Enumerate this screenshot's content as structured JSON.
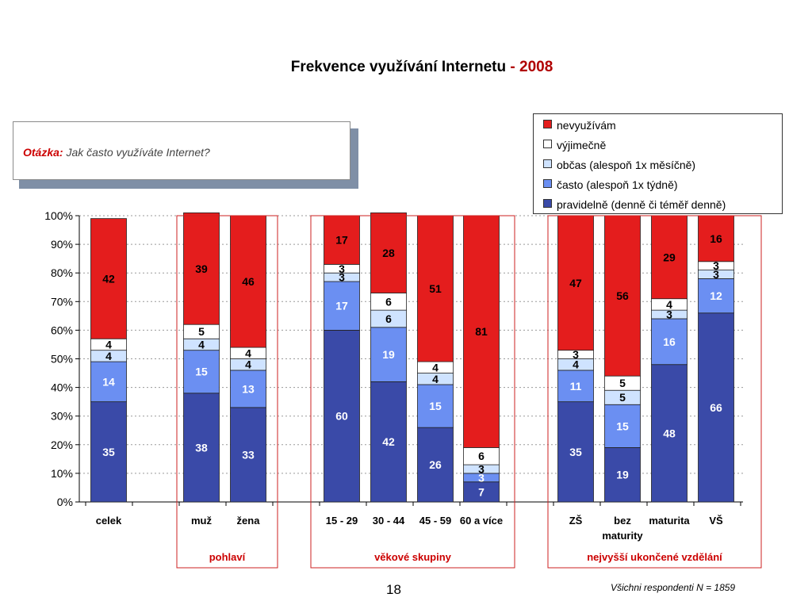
{
  "title": {
    "main": "Frekvence využívání Internetu",
    "dash": "-",
    "year": "2008"
  },
  "question": {
    "label": "Otázka:",
    "text": "Jak často využíváte Internet?"
  },
  "footer": {
    "page_number": "18",
    "note": "Všichni respondenti N = 1859"
  },
  "colors": {
    "pravidelne": "#3a4aa8",
    "casto": "#6b8ff2",
    "obcas": "#cfe3ff",
    "vyjimecne": "#ffffff",
    "nevyuzivam": "#e41d1d",
    "group_label": "#cc0000",
    "group_box": "#cc2222"
  },
  "chart_data": {
    "type": "bar",
    "stacked": true,
    "percent": true,
    "title": "Frekvence využívání Internetu - 2008",
    "ylim": [
      0,
      100
    ],
    "yticks": [
      "0%",
      "10%",
      "20%",
      "30%",
      "40%",
      "50%",
      "60%",
      "70%",
      "80%",
      "90%",
      "100%"
    ],
    "grid": true,
    "legend_position": "top-right",
    "categories": [
      "celek",
      "muž",
      "žena",
      "15 - 29",
      "30 - 44",
      "45 - 59",
      "60 a více",
      "ZŠ",
      "bez maturity",
      "maturita",
      "VŠ"
    ],
    "category_lines": [
      [
        "celek"
      ],
      [
        "muž"
      ],
      [
        "žena"
      ],
      [
        "15 - 29"
      ],
      [
        "30 - 44"
      ],
      [
        "45 - 59"
      ],
      [
        "60 a více"
      ],
      [
        "ZŠ"
      ],
      [
        "bez",
        "maturity"
      ],
      [
        "maturita"
      ],
      [
        "VŠ"
      ]
    ],
    "series": [
      {
        "key": "pravidelne",
        "name": "pravidelně (denně či téměř denně)",
        "values": [
          35,
          38,
          33,
          60,
          42,
          26,
          7,
          35,
          19,
          48,
          66
        ]
      },
      {
        "key": "casto",
        "name": "často (alespoň 1x týdně)",
        "values": [
          14,
          15,
          13,
          17,
          19,
          15,
          3,
          11,
          15,
          16,
          12
        ]
      },
      {
        "key": "obcas",
        "name": "občas (alespoň 1x měsíčně)",
        "values": [
          4,
          4,
          4,
          3,
          6,
          4,
          3,
          4,
          5,
          3,
          3
        ]
      },
      {
        "key": "vyjimecne",
        "name": "výjimečně",
        "values": [
          4,
          5,
          4,
          3,
          6,
          4,
          6,
          3,
          5,
          4,
          3
        ]
      },
      {
        "key": "nevyuzivam",
        "name": "nevyužívám",
        "values": [
          42,
          39,
          46,
          17,
          28,
          51,
          81,
          47,
          56,
          29,
          16
        ]
      }
    ],
    "groups": [
      {
        "label": "pohlaví",
        "categories": [
          "muž",
          "žena"
        ]
      },
      {
        "label": "věkové skupiny",
        "categories": [
          "15 - 29",
          "30 - 44",
          "45 - 59",
          "60 a více"
        ]
      },
      {
        "label": "nejvyšší ukončené vzdělání",
        "categories": [
          "ZŠ",
          "bez maturity",
          "maturita",
          "VŠ"
        ]
      }
    ]
  }
}
